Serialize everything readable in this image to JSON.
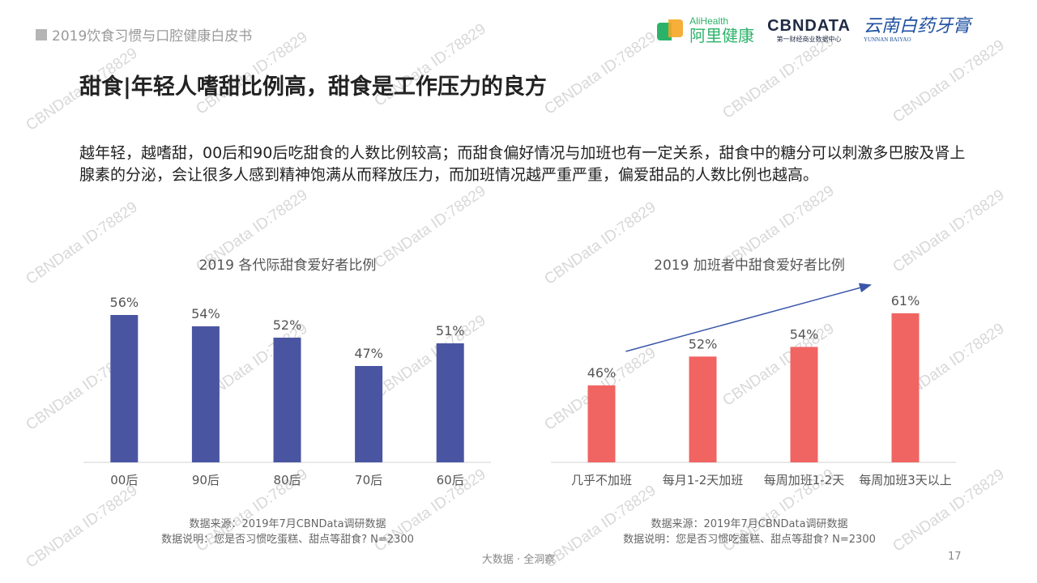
{
  "header": {
    "report_tag": "2019饮食习惯与口腔健康白皮书",
    "logo_alihealth_en": "AliHealth",
    "logo_alihealth_zh": "阿里健康",
    "logo_cbndata": "CBNDATA",
    "logo_cbndata_sub": "第一财经商业数据中心",
    "logo_yunnan_zh": "云南白药牙膏",
    "logo_yunnan_en": "YUNNAN BAIYAO"
  },
  "title": "甜食|年轻人嗜甜比例高，甜食是工作压力的良方",
  "description": "越年轻，越嗜甜，00后和90后吃甜食的人数比例较高；而甜食偏好情况与加班也有一定关系，甜食中的糖分可以刺激多巴胺及肾上腺素的分泌，会让很多人感到精神饱满从而释放压力，而加班情况越严重严重，偏爱甜品的人数比例也越高。",
  "chart_data": [
    {
      "type": "bar",
      "title": "2019 各代际甜食爱好者比例",
      "categories": [
        "00后",
        "90后",
        "80后",
        "70后",
        "60后"
      ],
      "values": [
        56,
        54,
        52,
        47,
        51
      ],
      "value_labels": [
        "56%",
        "54%",
        "52%",
        "47%",
        "51%"
      ],
      "unit": "%",
      "ylim": [
        30,
        58
      ],
      "color": "#4a55a2",
      "grid": false,
      "note_source": "数据来源：2019年7月CBNData调研数据",
      "note_desc": "数据说明：您是否习惯吃蛋糕、甜点等甜食? N=2300"
    },
    {
      "type": "bar",
      "title": "2019 加班者中甜食爱好者比例",
      "categories": [
        "几乎不加班",
        "每月1-2天加班",
        "每周加班1-2天",
        "每周加班3天以上"
      ],
      "values": [
        46,
        52,
        54,
        61
      ],
      "value_labels": [
        "46%",
        "52%",
        "54%",
        "61%"
      ],
      "unit": "%",
      "ylim": [
        30,
        63
      ],
      "color": "#f06462",
      "trend_arrow": true,
      "trend_color": "#3a56a8",
      "grid": false,
      "note_source": "数据来源：2019年7月CBNData调研数据",
      "note_desc": "数据说明：您是否习惯吃蛋糕、甜点等甜食? N=2300"
    }
  ],
  "watermark": "CBNData ID:78829",
  "footer": "大数据 · 全洞察",
  "page_number": "17"
}
